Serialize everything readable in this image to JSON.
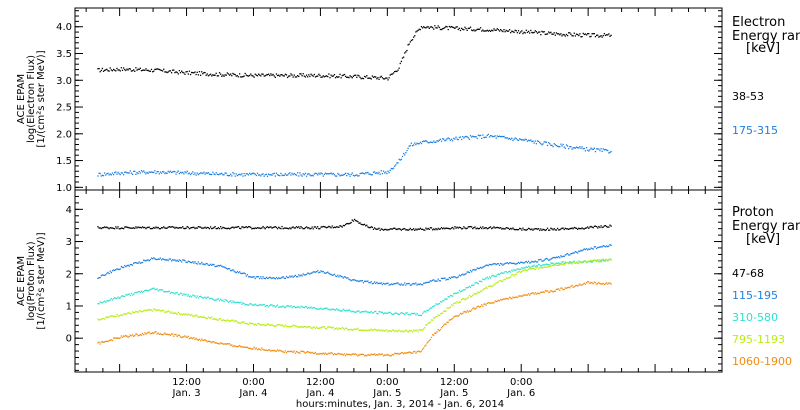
{
  "chart_data": [
    {
      "type": "scatter",
      "ylabel_lines": [
        "ACE EPAM",
        "log(Electron Flux)",
        "[1/(cm²s ster MeV)]"
      ],
      "legend": {
        "heading_lines": [
          "Electron",
          "Energy ran",
          "[keV]"
        ],
        "entries": [
          "38-53",
          "175-315"
        ]
      },
      "ylim": [
        0.95,
        4.35
      ],
      "yticks": [
        "1.0",
        "1.5",
        "2.0",
        "2.5",
        "3.0",
        "3.5",
        "4.0"
      ],
      "series": [
        {
          "name": "38-53",
          "color": "#000000",
          "x": [
            -4,
            0,
            6,
            12,
            18,
            24,
            30,
            36,
            42,
            48,
            50,
            52,
            54,
            56,
            60,
            66,
            72,
            78,
            84,
            88
          ],
          "y": [
            3.2,
            3.22,
            3.2,
            3.15,
            3.12,
            3.1,
            3.1,
            3.1,
            3.08,
            3.05,
            3.25,
            3.75,
            4.02,
            4.0,
            3.98,
            3.96,
            3.92,
            3.88,
            3.85,
            3.85
          ]
        },
        {
          "name": "175-315",
          "color": "#1e7fe0",
          "x": [
            -4,
            0,
            6,
            12,
            18,
            24,
            30,
            36,
            42,
            48,
            50,
            52,
            54,
            60,
            66,
            72,
            78,
            84,
            88
          ],
          "y": [
            1.25,
            1.28,
            1.3,
            1.28,
            1.26,
            1.25,
            1.25,
            1.25,
            1.25,
            1.3,
            1.5,
            1.8,
            1.85,
            1.92,
            1.97,
            1.9,
            1.8,
            1.72,
            1.68
          ]
        }
      ]
    },
    {
      "type": "scatter",
      "ylabel_lines": [
        "ACE EPAM",
        "log(Proton Flux)",
        "[1/(cm²s ster MeV)]"
      ],
      "legend": {
        "heading_lines": [
          "Proton",
          "Energy ran",
          "[keV]"
        ],
        "entries": [
          "47-68",
          "115-195",
          "310-580",
          "795-1193",
          "1060-1900"
        ]
      },
      "ylim": [
        -1.05,
        4.6
      ],
      "yticks": [
        "0",
        "1",
        "2",
        "3",
        "4"
      ],
      "series": [
        {
          "name": "47-68",
          "color": "#000000",
          "x": [
            -4,
            6,
            18,
            24,
            30,
            36,
            40,
            42,
            44,
            46,
            48,
            54,
            60,
            66,
            72,
            78,
            84,
            88
          ],
          "y": [
            3.45,
            3.45,
            3.45,
            3.45,
            3.45,
            3.45,
            3.5,
            3.7,
            3.5,
            3.4,
            3.4,
            3.4,
            3.45,
            3.45,
            3.4,
            3.4,
            3.45,
            3.5
          ]
        },
        {
          "name": "115-195",
          "color": "#1e7fe0",
          "x": [
            -4,
            0,
            6,
            12,
            18,
            24,
            30,
            36,
            42,
            48,
            54,
            56,
            60,
            66,
            72,
            78,
            84,
            88
          ],
          "y": [
            1.9,
            2.2,
            2.5,
            2.4,
            2.25,
            1.9,
            1.9,
            2.1,
            1.8,
            1.7,
            1.7,
            1.8,
            1.9,
            2.3,
            2.35,
            2.5,
            2.8,
            2.9
          ]
        },
        {
          "name": "310-580",
          "color": "#2ee0d0",
          "x": [
            -4,
            0,
            6,
            12,
            18,
            24,
            30,
            36,
            42,
            48,
            54,
            56,
            60,
            66,
            72,
            78,
            84,
            88
          ],
          "y": [
            1.1,
            1.3,
            1.55,
            1.35,
            1.2,
            1.05,
            1.0,
            0.95,
            0.85,
            0.8,
            0.75,
            1.0,
            1.4,
            1.9,
            2.2,
            2.35,
            2.4,
            2.45
          ]
        },
        {
          "name": "795-1193",
          "color": "#b8ec10",
          "x": [
            -4,
            0,
            6,
            12,
            18,
            24,
            30,
            36,
            42,
            48,
            54,
            56,
            60,
            66,
            72,
            78,
            84,
            88
          ],
          "y": [
            0.6,
            0.75,
            0.9,
            0.75,
            0.6,
            0.45,
            0.4,
            0.35,
            0.3,
            0.25,
            0.25,
            0.6,
            1.1,
            1.6,
            2.1,
            2.3,
            2.4,
            2.45
          ]
        },
        {
          "name": "1060-1900",
          "color": "#f08c10",
          "x": [
            -4,
            0,
            6,
            12,
            18,
            24,
            30,
            36,
            42,
            48,
            54,
            56,
            60,
            66,
            72,
            78,
            84,
            88
          ],
          "y": [
            -0.15,
            0.05,
            0.2,
            0.05,
            -0.15,
            -0.3,
            -0.4,
            -0.45,
            -0.5,
            -0.5,
            -0.4,
            0.1,
            0.7,
            1.1,
            1.35,
            1.5,
            1.75,
            1.7
          ]
        }
      ]
    }
  ],
  "x_axis": {
    "xlim": [
      -8,
      108
    ],
    "ticks": [
      {
        "hours": 12,
        "time": "12:00",
        "date": "Jan. 3"
      },
      {
        "hours": 24,
        "time": "0:00",
        "date": "Jan. 4"
      },
      {
        "hours": 36,
        "time": "12:00",
        "date": "Jan. 4"
      },
      {
        "hours": 48,
        "time": "0:00",
        "date": "Jan. 5"
      },
      {
        "hours": 60,
        "time": "12:00",
        "date": "Jan. 5"
      },
      {
        "hours": 72,
        "time": "0:00",
        "date": "Jan. 6"
      }
    ],
    "label": "hours:minutes, Jan.  3, 2014 - Jan.  6, 2014"
  }
}
